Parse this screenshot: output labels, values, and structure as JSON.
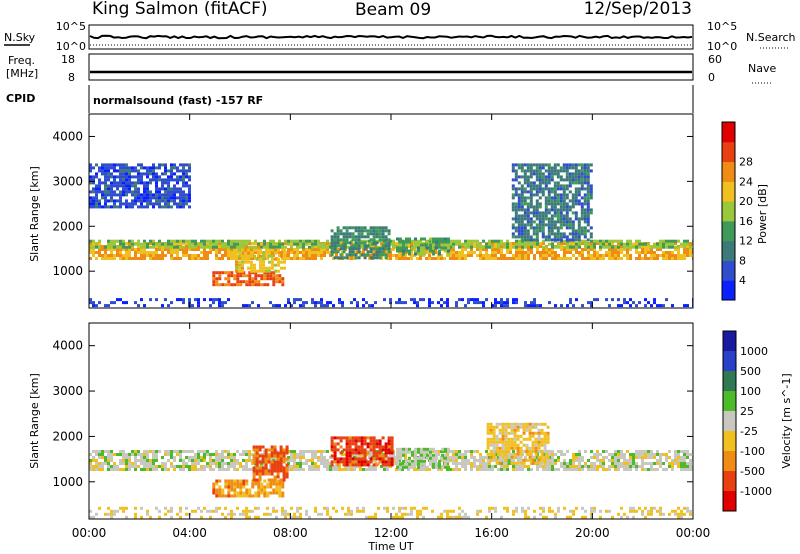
{
  "header": {
    "station": "King Salmon (fitACF)",
    "beam": "Beam 09",
    "date": "12/Sep/2013"
  },
  "status_panels": {
    "nsky_label": "N.Sky",
    "nsky_ticks": [
      "10^5",
      "10^0"
    ],
    "nsearch_label": "N.Search",
    "nsearch_ticks": [
      "10^5",
      "10^0"
    ],
    "freq_label": "Freq.",
    "freq_unit": "[MHz]",
    "freq_ticks": [
      "18",
      "8"
    ],
    "nave_label": "Nave",
    "nave_ticks": [
      "60",
      "0"
    ],
    "cpid_label": "CPID",
    "cpid_value": "normalsound (fast) -157 RF"
  },
  "chart_data": [
    {
      "type": "heatmap",
      "name": "power",
      "ylabel": "Slant Range [km]",
      "xlabel": "Time UT",
      "x_ticks": [
        "00:00",
        "04:00",
        "08:00",
        "12:00",
        "16:00",
        "20:00",
        "00:00"
      ],
      "x_range_hours": [
        0,
        24
      ],
      "y_ticks": [
        1000,
        2000,
        3000,
        4000
      ],
      "ylim": [
        180,
        4500
      ],
      "colorbar": {
        "label": "Power [dB]",
        "ticks": [
          "4",
          "8",
          "12",
          "16",
          "20",
          "24",
          "28"
        ],
        "range": [
          0,
          30
        ],
        "colors": [
          "#0a20ff",
          "#2f4dcc",
          "#3c7a7a",
          "#3f9a5a",
          "#9ac83a",
          "#f0c020",
          "#f08c14",
          "#e84010",
          "#e00000"
        ]
      },
      "regions": [
        {
          "x": [
            0,
            24
          ],
          "y": [
            1250,
            1650
          ],
          "value": 20,
          "desc": "main band"
        },
        {
          "x": [
            0,
            24
          ],
          "y": [
            1550,
            1700
          ],
          "value": 14,
          "desc": "main band upper"
        },
        {
          "x": [
            4.9,
            7.7
          ],
          "y": [
            700,
            1000
          ],
          "value": 24,
          "desc": "descending arc"
        },
        {
          "x": [
            5.8,
            7.8
          ],
          "y": [
            1000,
            1500
          ],
          "value": 18,
          "desc": "arc upper"
        },
        {
          "x": [
            9.6,
            11.9
          ],
          "y": [
            1300,
            2000
          ],
          "value": 10,
          "desc": "patch 10-12 UT"
        },
        {
          "x": [
            12.2,
            14.3
          ],
          "y": [
            1350,
            1750
          ],
          "value": 12,
          "desc": "patch 12-14 UT"
        },
        {
          "x": [
            16.8,
            20
          ],
          "y": [
            1700,
            3400
          ],
          "value": 8,
          "desc": "oblique structure"
        },
        {
          "x": [
            0,
            4
          ],
          "y": [
            2400,
            3400
          ],
          "value": 5,
          "desc": "upper echoes"
        },
        {
          "x": [
            0,
            24
          ],
          "y": [
            200,
            400
          ],
          "value": 4,
          "desc": "near-range noise"
        }
      ]
    },
    {
      "type": "heatmap",
      "name": "velocity",
      "ylabel": "Slant Range [km]",
      "xlabel": "Time UT",
      "x_ticks": [
        "00:00",
        "04:00",
        "08:00",
        "12:00",
        "16:00",
        "20:00",
        "00:00"
      ],
      "x_range_hours": [
        0,
        24
      ],
      "y_ticks": [
        1000,
        2000,
        3000,
        4000
      ],
      "ylim": [
        180,
        4500
      ],
      "colorbar": {
        "label": "Velocity [m s^-1]",
        "ticks": [
          "1000",
          "500",
          "100",
          "25",
          "-25",
          "-100",
          "-500",
          "-1000"
        ],
        "range": [
          -1000,
          1000
        ],
        "colors": [
          "#1a1aa0",
          "#2a40c8",
          "#2f7a52",
          "#4cbb2a",
          "#c8c8c0",
          "#f0c020",
          "#f08c14",
          "#e84010",
          "#e00000"
        ]
      },
      "regions": [
        {
          "x": [
            0,
            24
          ],
          "y": [
            1250,
            1700
          ],
          "value": 0,
          "desc": "ground scatter band"
        },
        {
          "x": [
            4.9,
            7.7
          ],
          "y": [
            700,
            1050
          ],
          "value": -400,
          "desc": "descending arc"
        },
        {
          "x": [
            6.5,
            7.9
          ],
          "y": [
            1050,
            1800
          ],
          "value": -600,
          "desc": "arc upper"
        },
        {
          "x": [
            9.6,
            12
          ],
          "y": [
            1350,
            2000
          ],
          "value": -700,
          "desc": "red patch"
        },
        {
          "x": [
            12.2,
            14.3
          ],
          "y": [
            1350,
            1750
          ],
          "value": 80,
          "desc": "green patch"
        },
        {
          "x": [
            15.8,
            18.2
          ],
          "y": [
            1400,
            2300
          ],
          "value": -200,
          "desc": "mixed patch"
        },
        {
          "x": [
            0,
            24
          ],
          "y": [
            200,
            450
          ],
          "value": -150,
          "desc": "near-range noise"
        }
      ]
    }
  ]
}
